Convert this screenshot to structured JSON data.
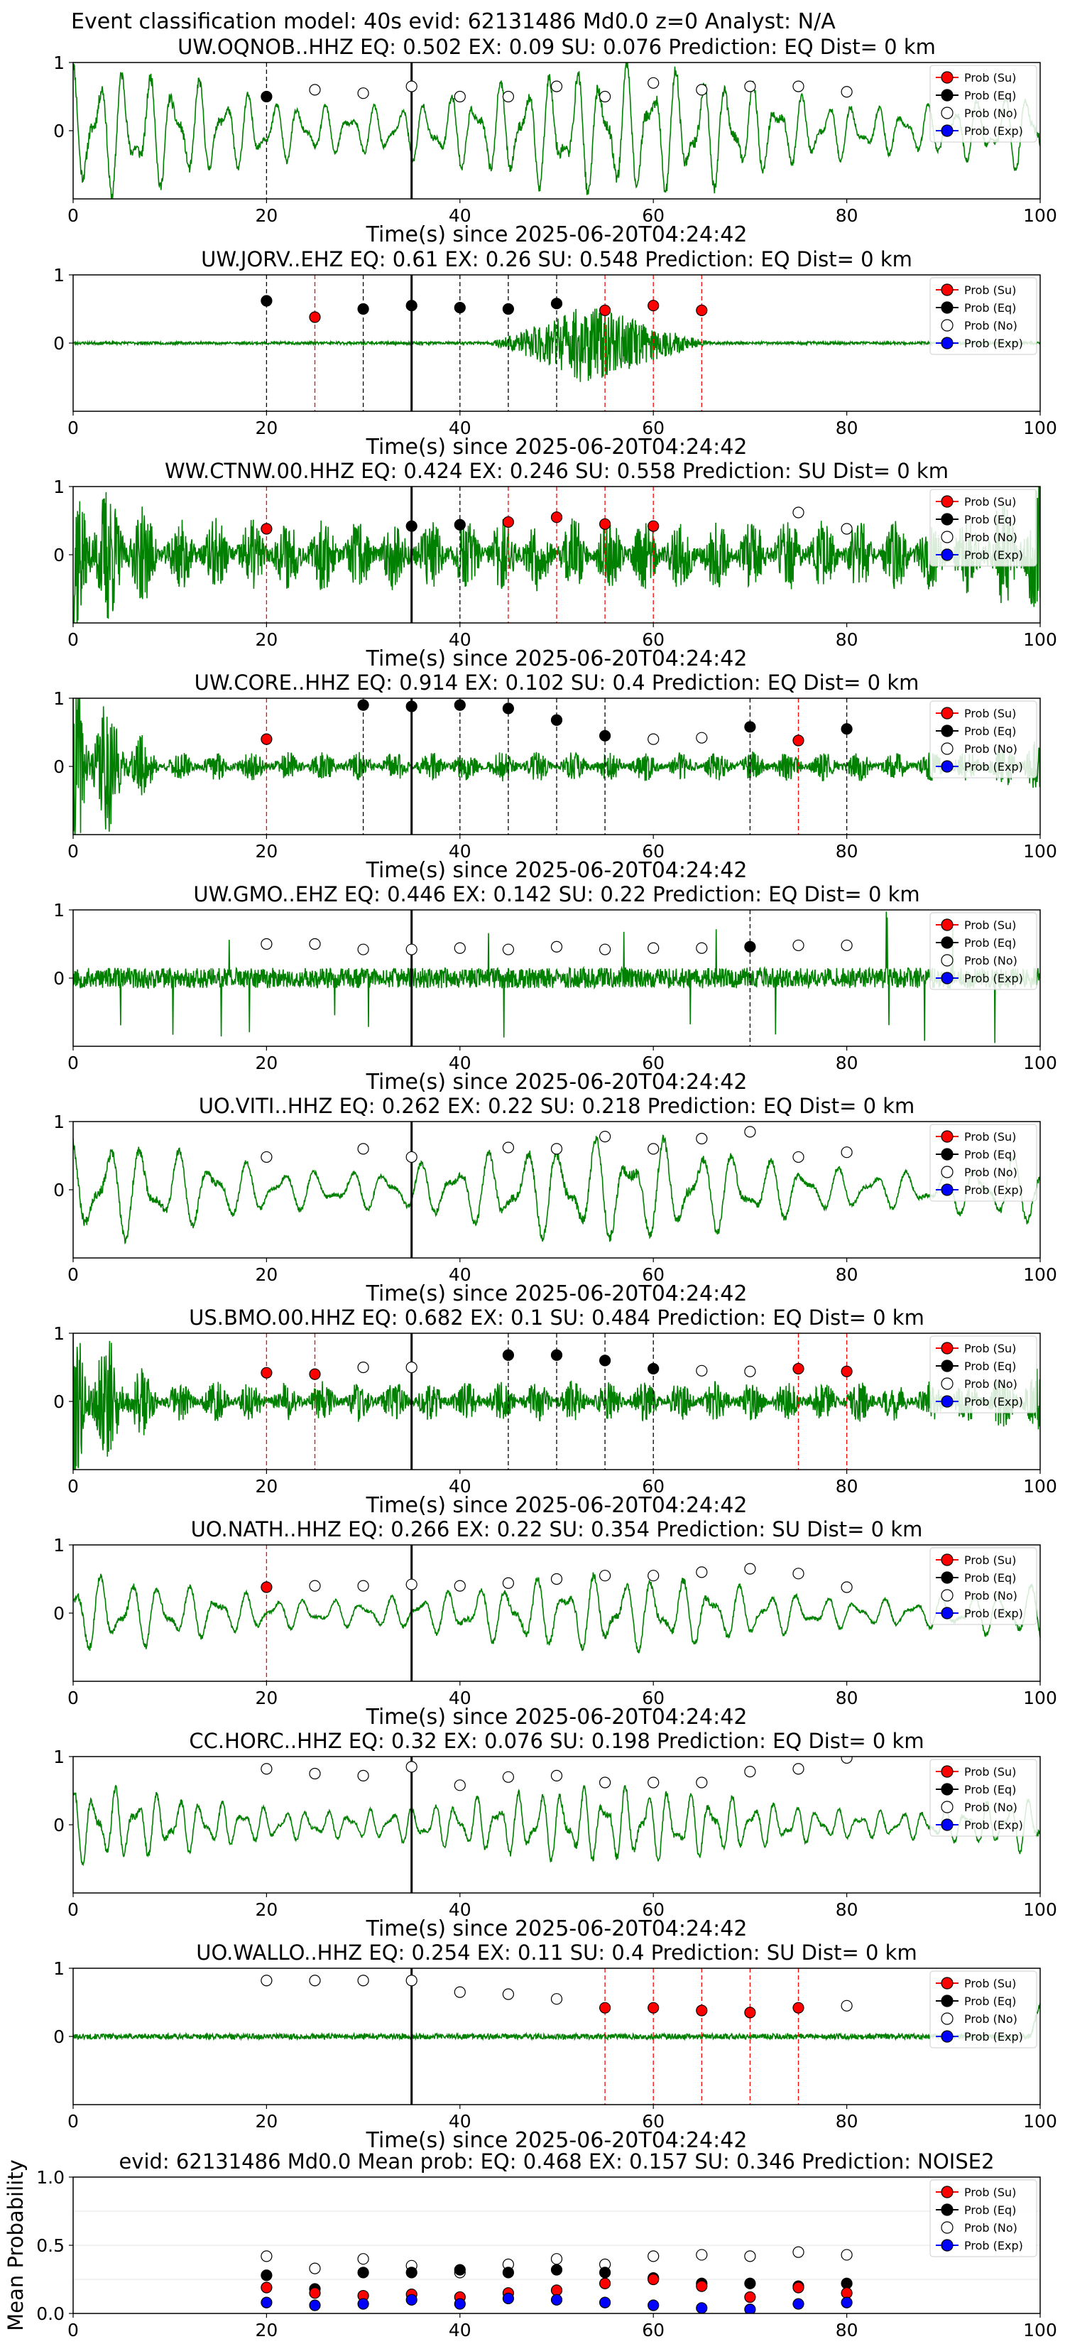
{
  "suptitle": "Event classification model: 40s evid: 62131486 Md0.0 z=0 Analyst: N/A",
  "legend": [
    "Prob (Su)",
    "Prob (Eq)",
    "Prob (No)",
    "Prob (Exp)"
  ],
  "colors": {
    "su": "#ff0000",
    "eq": "#000000",
    "no": "#ffffff",
    "exp": "#0000ff",
    "trace": "#008000",
    "su_line": "#ff0000",
    "eq_line": "#000000"
  },
  "chart_data": [
    {
      "type": "line",
      "title": "UW.OQNOB..HHZ    EQ: 0.502  EX: 0.09  SU: 0.076   Prediction: EQ    Dist= 0 km",
      "xlabel": "Time(s) since 2025-06-20T04:24:42",
      "xlim": [
        0,
        100
      ],
      "ylim": [
        -1,
        1
      ],
      "xticks": [
        "0",
        "20",
        "40",
        "60",
        "80",
        "100"
      ],
      "yticks": [
        "1",
        "0"
      ],
      "origin_time": 35,
      "points": [
        [
          20,
          0.5,
          "eq"
        ],
        [
          25,
          0.6,
          "no"
        ],
        [
          30,
          0.55,
          "no"
        ],
        [
          35,
          0.65,
          "no"
        ],
        [
          40,
          0.5,
          "no"
        ],
        [
          45,
          0.5,
          "no"
        ],
        [
          50,
          0.65,
          "no"
        ],
        [
          55,
          0.5,
          "no"
        ],
        [
          60,
          0.7,
          "no"
        ],
        [
          65,
          0.6,
          "no"
        ],
        [
          70,
          0.65,
          "no"
        ],
        [
          75,
          0.65,
          "no"
        ],
        [
          80,
          0.57,
          "no"
        ]
      ],
      "vlines": [
        [
          20,
          "eq"
        ]
      ],
      "trace": {
        "style": "smooth",
        "amp": 0.95,
        "seed": 11,
        "period": 2.6
      }
    },
    {
      "type": "line",
      "title": "UW.JORV..EHZ   EQ: 0.61  EX: 0.26  SU: 0.548   Prediction: EQ    Dist= 0 km",
      "xlabel": "Time(s) since 2025-06-20T04:24:42",
      "xlim": [
        0,
        100
      ],
      "ylim": [
        -1,
        1
      ],
      "xticks": [
        "0",
        "20",
        "40",
        "60",
        "80",
        "100"
      ],
      "yticks": [
        "1",
        "0"
      ],
      "origin_time": 35,
      "points": [
        [
          20,
          0.62,
          "eq"
        ],
        [
          25,
          0.38,
          "su"
        ],
        [
          30,
          0.5,
          "eq"
        ],
        [
          35,
          0.55,
          "eq"
        ],
        [
          40,
          0.52,
          "eq"
        ],
        [
          45,
          0.5,
          "eq"
        ],
        [
          50,
          0.58,
          "eq"
        ],
        [
          55,
          0.48,
          "su"
        ],
        [
          60,
          0.55,
          "su"
        ],
        [
          65,
          0.48,
          "su"
        ]
      ],
      "vlines": [
        [
          20,
          "eq"
        ],
        [
          25,
          "su"
        ],
        [
          30,
          "eq"
        ],
        [
          40,
          "eq"
        ],
        [
          45,
          "eq"
        ],
        [
          50,
          "eq"
        ],
        [
          55,
          "su"
        ],
        [
          60,
          "su"
        ],
        [
          65,
          "su"
        ]
      ],
      "trace": {
        "style": "burst",
        "amp": 0.6,
        "seed": 23,
        "base": 0.02,
        "burst_start": 43,
        "burst_peak": 53,
        "burst_end": 66
      }
    },
    {
      "type": "line",
      "title": "WW.CTNW.00.HHZ   EQ: 0.424  EX: 0.246  SU: 0.558   Prediction: SU    Dist= 0 km",
      "xlabel": "Time(s) since 2025-06-20T04:24:42",
      "xlim": [
        0,
        100
      ],
      "ylim": [
        -1,
        1
      ],
      "xticks": [
        "0",
        "20",
        "40",
        "60",
        "80",
        "100"
      ],
      "yticks": [
        "1",
        "0"
      ],
      "origin_time": 35,
      "points": [
        [
          20,
          0.38,
          "su"
        ],
        [
          35,
          0.42,
          "eq"
        ],
        [
          40,
          0.44,
          "eq"
        ],
        [
          45,
          0.48,
          "su"
        ],
        [
          50,
          0.55,
          "su"
        ],
        [
          55,
          0.45,
          "su"
        ],
        [
          60,
          0.42,
          "su"
        ],
        [
          75,
          0.62,
          "no"
        ],
        [
          80,
          0.38,
          "no"
        ]
      ],
      "vlines": [
        [
          20,
          "su"
        ],
        [
          40,
          "eq"
        ],
        [
          45,
          "su"
        ],
        [
          50,
          "su"
        ],
        [
          55,
          "su"
        ],
        [
          60,
          "su"
        ]
      ],
      "trace": {
        "style": "noise",
        "amp": 0.55,
        "seed": 37,
        "start_boost": 0.9,
        "end_boost": 0.6
      }
    },
    {
      "type": "line",
      "title": "UW.CORE..HHZ   EQ: 0.914  EX: 0.102  SU: 0.4   Prediction: EQ    Dist= 0 km",
      "xlabel": "Time(s) since 2025-06-20T04:24:42",
      "xlim": [
        0,
        100
      ],
      "ylim": [
        -1,
        1
      ],
      "xticks": [
        "0",
        "20",
        "40",
        "60",
        "80",
        "100"
      ],
      "yticks": [
        "1",
        "0"
      ],
      "origin_time": 35,
      "points": [
        [
          20,
          0.4,
          "su"
        ],
        [
          30,
          0.9,
          "eq"
        ],
        [
          35,
          0.88,
          "eq"
        ],
        [
          40,
          0.9,
          "eq"
        ],
        [
          45,
          0.85,
          "eq"
        ],
        [
          50,
          0.68,
          "eq"
        ],
        [
          55,
          0.45,
          "eq"
        ],
        [
          60,
          0.4,
          "no"
        ],
        [
          65,
          0.42,
          "no"
        ],
        [
          70,
          0.58,
          "eq"
        ],
        [
          75,
          0.38,
          "su"
        ],
        [
          80,
          0.55,
          "eq"
        ]
      ],
      "vlines": [
        [
          20,
          "su"
        ],
        [
          30,
          "eq"
        ],
        [
          40,
          "eq"
        ],
        [
          45,
          "eq"
        ],
        [
          50,
          "eq"
        ],
        [
          55,
          "eq"
        ],
        [
          70,
          "eq"
        ],
        [
          75,
          "su"
        ],
        [
          80,
          "eq"
        ]
      ],
      "trace": {
        "style": "noise",
        "amp": 0.22,
        "seed": 41,
        "start_boost": 1.3,
        "end_boost": 0.2
      }
    },
    {
      "type": "line",
      "title": "UW.GMO..EHZ   EQ: 0.446  EX: 0.142  SU: 0.22   Prediction: EQ    Dist= 0 km",
      "xlabel": "Time(s) since 2025-06-20T04:24:42",
      "xlim": [
        0,
        100
      ],
      "ylim": [
        -1,
        1
      ],
      "xticks": [
        "0",
        "20",
        "40",
        "60",
        "80",
        "100"
      ],
      "yticks": [
        "1",
        "0"
      ],
      "origin_time": 35,
      "points": [
        [
          20,
          0.5,
          "no"
        ],
        [
          25,
          0.5,
          "no"
        ],
        [
          30,
          0.42,
          "no"
        ],
        [
          35,
          0.42,
          "no"
        ],
        [
          40,
          0.44,
          "no"
        ],
        [
          45,
          0.42,
          "no"
        ],
        [
          50,
          0.46,
          "no"
        ],
        [
          55,
          0.42,
          "no"
        ],
        [
          60,
          0.44,
          "no"
        ],
        [
          65,
          0.44,
          "no"
        ],
        [
          70,
          0.46,
          "eq"
        ],
        [
          75,
          0.48,
          "no"
        ],
        [
          80,
          0.48,
          "no"
        ]
      ],
      "vlines": [
        [
          70,
          "eq"
        ]
      ],
      "trace": {
        "style": "spiky",
        "amp": 0.25,
        "seed": 53
      }
    },
    {
      "type": "line",
      "title": "UO.VITI..HHZ   EQ: 0.262  EX: 0.22  SU: 0.218   Prediction: EQ    Dist= 0 km",
      "xlabel": "Time(s) since 2025-06-20T04:24:42",
      "xlim": [
        0,
        100
      ],
      "ylim": [
        -1,
        1
      ],
      "xticks": [
        "0",
        "20",
        "40",
        "60",
        "80",
        "100"
      ],
      "yticks": [
        "1",
        "0"
      ],
      "origin_time": 35,
      "points": [
        [
          20,
          0.48,
          "no"
        ],
        [
          30,
          0.6,
          "no"
        ],
        [
          35,
          0.48,
          "no"
        ],
        [
          45,
          0.62,
          "no"
        ],
        [
          50,
          0.6,
          "no"
        ],
        [
          55,
          0.78,
          "no"
        ],
        [
          60,
          0.6,
          "no"
        ],
        [
          65,
          0.75,
          "no"
        ],
        [
          70,
          0.85,
          "no"
        ],
        [
          75,
          0.48,
          "no"
        ],
        [
          80,
          0.55,
          "no"
        ]
      ],
      "vlines": [],
      "trace": {
        "style": "smooth",
        "amp": 0.75,
        "seed": 67,
        "period": 3.6
      }
    },
    {
      "type": "line",
      "title": "US.BMO.00.HHZ   EQ: 0.682  EX: 0.1  SU: 0.484   Prediction: EQ    Dist= 0 km",
      "xlabel": "Time(s) since 2025-06-20T04:24:42",
      "xlim": [
        0,
        100
      ],
      "ylim": [
        -1,
        1
      ],
      "xticks": [
        "0",
        "20",
        "40",
        "60",
        "80",
        "100"
      ],
      "yticks": [
        "1",
        "0"
      ],
      "origin_time": 35,
      "points": [
        [
          20,
          0.42,
          "su"
        ],
        [
          25,
          0.4,
          "su"
        ],
        [
          30,
          0.5,
          "no"
        ],
        [
          35,
          0.5,
          "no"
        ],
        [
          45,
          0.68,
          "eq"
        ],
        [
          50,
          0.68,
          "eq"
        ],
        [
          55,
          0.6,
          "eq"
        ],
        [
          60,
          0.48,
          "eq"
        ],
        [
          65,
          0.45,
          "no"
        ],
        [
          70,
          0.44,
          "no"
        ],
        [
          75,
          0.48,
          "su"
        ],
        [
          80,
          0.44,
          "su"
        ]
      ],
      "vlines": [
        [
          20,
          "su"
        ],
        [
          25,
          "su"
        ],
        [
          45,
          "eq"
        ],
        [
          50,
          "eq"
        ],
        [
          55,
          "eq"
        ],
        [
          60,
          "eq"
        ],
        [
          75,
          "su"
        ],
        [
          80,
          "su"
        ]
      ],
      "trace": {
        "style": "noise",
        "amp": 0.3,
        "seed": 79,
        "start_boost": 1.1,
        "end_boost": 0.2
      }
    },
    {
      "type": "line",
      "title": "UO.NATH..HHZ   EQ: 0.266  EX: 0.22  SU: 0.354   Prediction: SU    Dist= 0 km",
      "xlabel": "Time(s) since 2025-06-20T04:24:42",
      "xlim": [
        0,
        100
      ],
      "ylim": [
        -1,
        1
      ],
      "xticks": [
        "0",
        "20",
        "40",
        "60",
        "80",
        "100"
      ],
      "yticks": [
        "1",
        "0"
      ],
      "origin_time": 35,
      "points": [
        [
          20,
          0.38,
          "su"
        ],
        [
          25,
          0.4,
          "no"
        ],
        [
          30,
          0.4,
          "no"
        ],
        [
          35,
          0.42,
          "no"
        ],
        [
          40,
          0.4,
          "no"
        ],
        [
          45,
          0.44,
          "no"
        ],
        [
          50,
          0.5,
          "no"
        ],
        [
          55,
          0.55,
          "no"
        ],
        [
          60,
          0.55,
          "no"
        ],
        [
          65,
          0.6,
          "no"
        ],
        [
          70,
          0.65,
          "no"
        ],
        [
          75,
          0.58,
          "no"
        ],
        [
          80,
          0.38,
          "no"
        ]
      ],
      "vlines": [
        [
          20,
          "su"
        ]
      ],
      "trace": {
        "style": "smooth",
        "amp": 0.55,
        "seed": 83,
        "period": 3.0
      }
    },
    {
      "type": "line",
      "title": "CC.HORC..HHZ   EQ: 0.32  EX: 0.076  SU: 0.198   Prediction: EQ    Dist= 0 km",
      "xlabel": "Time(s) since 2025-06-20T04:24:42",
      "xlim": [
        0,
        100
      ],
      "ylim": [
        -1,
        1
      ],
      "xticks": [
        "0",
        "20",
        "40",
        "60",
        "80",
        "100"
      ],
      "yticks": [
        "1",
        "0"
      ],
      "origin_time": 35,
      "points": [
        [
          20,
          0.82,
          "no"
        ],
        [
          25,
          0.75,
          "no"
        ],
        [
          30,
          0.72,
          "no"
        ],
        [
          35,
          0.85,
          "no"
        ],
        [
          40,
          0.58,
          "no"
        ],
        [
          45,
          0.7,
          "no"
        ],
        [
          50,
          0.72,
          "no"
        ],
        [
          55,
          0.62,
          "no"
        ],
        [
          60,
          0.62,
          "no"
        ],
        [
          65,
          0.62,
          "no"
        ],
        [
          70,
          0.78,
          "no"
        ],
        [
          75,
          0.82,
          "no"
        ],
        [
          80,
          0.98,
          "no"
        ]
      ],
      "vlines": [],
      "trace": {
        "style": "smooth",
        "amp": 0.55,
        "seed": 97,
        "period": 2.2
      }
    },
    {
      "type": "line",
      "title": "UO.WALLO..HHZ   EQ: 0.254  EX: 0.11  SU: 0.4   Prediction: SU    Dist= 0 km",
      "xlabel": "Time(s) since 2025-06-20T04:24:42",
      "xlim": [
        0,
        100
      ],
      "ylim": [
        -1,
        1
      ],
      "xticks": [
        "0",
        "20",
        "40",
        "60",
        "80",
        "100"
      ],
      "yticks": [
        "1",
        "0"
      ],
      "origin_time": 35,
      "points": [
        [
          20,
          0.82,
          "no"
        ],
        [
          25,
          0.82,
          "no"
        ],
        [
          30,
          0.82,
          "no"
        ],
        [
          35,
          0.82,
          "no"
        ],
        [
          40,
          0.65,
          "no"
        ],
        [
          45,
          0.62,
          "no"
        ],
        [
          50,
          0.55,
          "no"
        ],
        [
          55,
          0.42,
          "su"
        ],
        [
          60,
          0.42,
          "su"
        ],
        [
          65,
          0.38,
          "su"
        ],
        [
          70,
          0.35,
          "su"
        ],
        [
          75,
          0.42,
          "su"
        ],
        [
          80,
          0.45,
          "no"
        ]
      ],
      "vlines": [
        [
          55,
          "su"
        ],
        [
          60,
          "su"
        ],
        [
          65,
          "su"
        ],
        [
          70,
          "su"
        ],
        [
          75,
          "su"
        ]
      ],
      "trace": {
        "style": "flat",
        "amp": 0.04,
        "seed": 101
      }
    },
    {
      "type": "scatter",
      "title": "evid: 62131486  Md0.0   Mean prob:   EQ: 0.468  EX: 0.157  SU: 0.346   Prediction: NOISE2",
      "xlabel": "",
      "ylabel": "Mean Probability",
      "xlim": [
        0,
        100
      ],
      "ylim": [
        0,
        1
      ],
      "xticks": [
        "0",
        "20",
        "40",
        "60",
        "80",
        "100"
      ],
      "yticks": [
        "1.0",
        "0.5",
        "0.0"
      ],
      "ytick_values": [
        1,
        0.5,
        0
      ],
      "series": [
        {
          "name": "Prob (No)",
          "key": "no",
          "x": [
            20,
            25,
            30,
            35,
            40,
            45,
            50,
            55,
            60,
            65,
            70,
            75,
            80
          ],
          "y": [
            0.42,
            0.33,
            0.4,
            0.35,
            0.3,
            0.36,
            0.4,
            0.36,
            0.42,
            0.43,
            0.42,
            0.45,
            0.43
          ]
        },
        {
          "name": "Prob (Eq)",
          "key": "eq",
          "x": [
            20,
            25,
            30,
            35,
            40,
            45,
            50,
            55,
            60,
            65,
            70,
            75,
            80
          ],
          "y": [
            0.28,
            0.18,
            0.3,
            0.3,
            0.32,
            0.3,
            0.32,
            0.3,
            0.26,
            0.22,
            0.22,
            0.2,
            0.22
          ]
        },
        {
          "name": "Prob (Su)",
          "key": "su",
          "x": [
            20,
            25,
            30,
            35,
            40,
            45,
            50,
            55,
            60,
            65,
            70,
            75,
            80
          ],
          "y": [
            0.19,
            0.15,
            0.13,
            0.14,
            0.12,
            0.15,
            0.17,
            0.22,
            0.25,
            0.2,
            0.12,
            0.19,
            0.15
          ]
        },
        {
          "name": "Prob (Exp)",
          "key": "exp",
          "x": [
            20,
            25,
            30,
            35,
            40,
            45,
            50,
            55,
            60,
            65,
            70,
            75,
            80
          ],
          "y": [
            0.08,
            0.06,
            0.07,
            0.1,
            0.07,
            0.11,
            0.1,
            0.08,
            0.06,
            0.04,
            0.03,
            0.07,
            0.08
          ]
        }
      ]
    }
  ]
}
